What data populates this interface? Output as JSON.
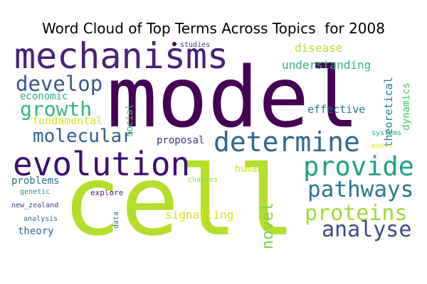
{
  "chart_data": {
    "type": "wordcloud",
    "title": "Word Cloud of Top Terms Across Topics  for 2008",
    "background": "#ffffff",
    "colormap": "viridis",
    "words": [
      {
        "text": "model",
        "weight": 1.0,
        "color": "#440154",
        "rotated": false
      },
      {
        "text": "cell",
        "weight": 0.98,
        "color": "#b5de2b",
        "rotated": false
      },
      {
        "text": "mechanisms",
        "weight": 0.52,
        "color": "#482173",
        "rotated": false
      },
      {
        "text": "evolution",
        "weight": 0.5,
        "color": "#3b0f70",
        "rotated": false
      },
      {
        "text": "determine",
        "weight": 0.42,
        "color": "#31688e",
        "rotated": false
      },
      {
        "text": "provide",
        "weight": 0.4,
        "color": "#1fa187",
        "rotated": false
      },
      {
        "text": "pathways",
        "weight": 0.36,
        "color": "#2a788e",
        "rotated": false
      },
      {
        "text": "proteins",
        "weight": 0.35,
        "color": "#a0da39",
        "rotated": false
      },
      {
        "text": "analyse",
        "weight": 0.34,
        "color": "#3e4989",
        "rotated": false
      },
      {
        "text": "develop",
        "weight": 0.33,
        "color": "#38588c",
        "rotated": false
      },
      {
        "text": "growth",
        "weight": 0.32,
        "color": "#35b779",
        "rotated": false
      },
      {
        "text": "molecular",
        "weight": 0.3,
        "color": "#34618d",
        "rotated": false
      },
      {
        "text": "novel",
        "weight": 0.24,
        "color": "#7fd34e",
        "rotated": true
      },
      {
        "text": "disease",
        "weight": 0.16,
        "color": "#b8de29",
        "rotated": false
      },
      {
        "text": "understanding",
        "weight": 0.16,
        "color": "#32b67a",
        "rotated": false
      },
      {
        "text": "signalling",
        "weight": 0.16,
        "color": "#dde318",
        "rotated": false
      },
      {
        "text": "theoretical",
        "weight": 0.15,
        "color": "#287d8e",
        "rotated": true
      },
      {
        "text": "effective",
        "weight": 0.15,
        "color": "#2c718e",
        "rotated": false
      },
      {
        "text": "fundamental",
        "weight": 0.15,
        "color": "#d2e21b",
        "rotated": false
      },
      {
        "text": "economic",
        "weight": 0.14,
        "color": "#2ab07f",
        "rotated": false
      },
      {
        "text": "dynamics",
        "weight": 0.14,
        "color": "#4ac16d",
        "rotated": true
      },
      {
        "text": "proposal",
        "weight": 0.14,
        "color": "#46327e",
        "rotated": false
      },
      {
        "text": "theory",
        "weight": 0.14,
        "color": "#33638d",
        "rotated": false
      },
      {
        "text": "problems",
        "weight": 0.14,
        "color": "#2d708e",
        "rotated": false
      },
      {
        "text": "social",
        "weight": 0.13,
        "color": "#3dbc74",
        "rotated": true
      },
      {
        "text": "human",
        "weight": 0.13,
        "color": "#c2df23",
        "rotated": false
      },
      {
        "text": "explore",
        "weight": 0.1,
        "color": "#482475",
        "rotated": false
      },
      {
        "text": "changes",
        "weight": 0.09,
        "color": "#9fda3a",
        "rotated": false
      },
      {
        "text": "systems",
        "weight": 0.09,
        "color": "#22a884",
        "rotated": false
      },
      {
        "text": "maori",
        "weight": 0.08,
        "color": "#f1e51d",
        "rotated": false
      },
      {
        "text": "genetic",
        "weight": 0.08,
        "color": "#21918c",
        "rotated": false
      },
      {
        "text": "new_zealand",
        "weight": 0.08,
        "color": "#3f4788",
        "rotated": false
      },
      {
        "text": "analysis",
        "weight": 0.08,
        "color": "#31688e",
        "rotated": false
      },
      {
        "text": "data",
        "weight": 0.08,
        "color": "#2c728e",
        "rotated": true
      },
      {
        "text": "studies",
        "weight": 0.07,
        "color": "#443983",
        "rotated": false
      }
    ]
  }
}
